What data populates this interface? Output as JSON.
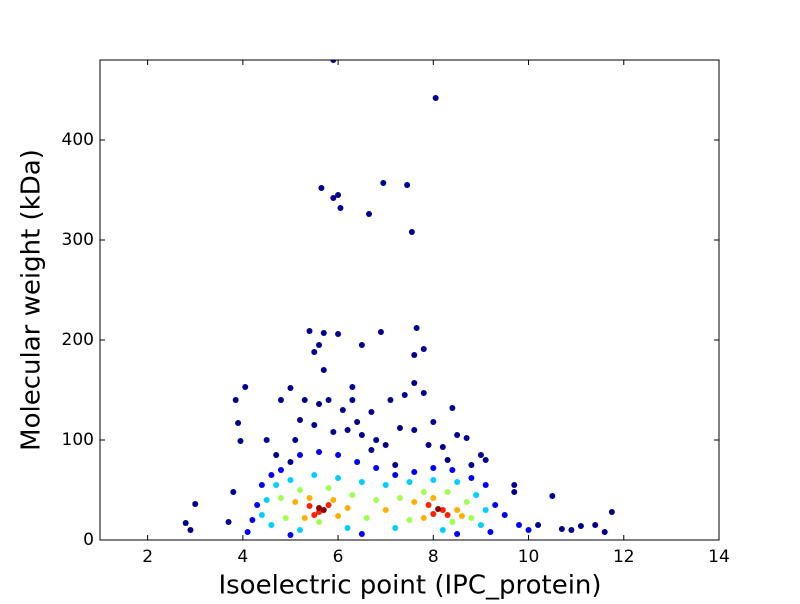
{
  "chart_data": {
    "type": "scatter",
    "x_label": "Isoelectric point (IPC_protein)",
    "y_label": "Molecular weight (kDa)",
    "xlim": [
      1,
      14
    ],
    "xticks": [
      2,
      4,
      6,
      8,
      10,
      12,
      14
    ],
    "ylim": [
      0,
      480
    ],
    "yticks": [
      0,
      100,
      200,
      300,
      400
    ],
    "grid": false,
    "series": [
      {
        "color": "#00008f",
        "x": [
          5.65,
          5.9,
          6.0,
          6.05,
          6.65,
          6.95,
          7.45,
          7.55,
          8.05,
          5.9,
          5.4,
          5.7,
          6.0,
          6.9,
          7.65,
          7.8,
          7.6,
          6.5,
          5.6,
          5.5,
          5.7,
          4.05,
          3.85,
          5.0,
          6.3,
          7.6,
          7.8,
          3.9,
          3.95,
          4.5,
          4.8,
          5.3,
          5.6,
          5.8,
          6.1,
          6.3,
          6.7,
          7.1,
          7.4,
          8.4,
          8.5,
          8.7,
          9.0,
          9.1,
          7.3,
          7.0,
          5.2,
          5.5,
          5.9,
          6.2,
          6.5,
          6.8,
          7.6,
          7.9,
          8.2,
          8.0,
          2.8,
          2.9,
          3.0,
          3.7,
          3.8,
          10.5,
          9.7,
          9.7,
          11.75,
          11.6,
          11.4,
          11.1,
          10.9,
          10.7,
          10.2,
          6.4,
          5.1,
          8.8,
          4.7,
          5.0,
          6.7,
          7.2,
          8.3
        ],
        "values": [
          352,
          342,
          345,
          332,
          326,
          357,
          355,
          308,
          442,
          480,
          209,
          207,
          206,
          208,
          212,
          191,
          185,
          195,
          195,
          188,
          170,
          153,
          140,
          152,
          153,
          157,
          147,
          117,
          99,
          100,
          140,
          140,
          136,
          140,
          130,
          140,
          128,
          140,
          145,
          132,
          105,
          102,
          85,
          80,
          112,
          95,
          120,
          115,
          108,
          110,
          105,
          100,
          110,
          95,
          93,
          118,
          17,
          10,
          36,
          18,
          48,
          44,
          55,
          48,
          28,
          8,
          15,
          14,
          10,
          11,
          15,
          118,
          100,
          75,
          85,
          78,
          90,
          75,
          80
        ]
      },
      {
        "color": "#0000ff",
        "x": [
          4.4,
          4.6,
          4.8,
          5.2,
          5.6,
          6.0,
          6.4,
          6.8,
          7.2,
          7.6,
          8.0,
          8.4,
          8.8,
          9.1,
          9.3,
          9.5,
          9.8,
          10.0,
          4.3,
          4.2,
          4.1,
          5.0,
          6.5,
          8.5,
          9.2
        ],
        "values": [
          55,
          65,
          70,
          85,
          88,
          85,
          78,
          72,
          65,
          68,
          72,
          70,
          62,
          55,
          35,
          25,
          15,
          10,
          35,
          20,
          8,
          5,
          6,
          6,
          8
        ]
      },
      {
        "color": "#00d0ff",
        "x": [
          4.5,
          4.7,
          5.0,
          5.5,
          6.0,
          6.5,
          7.0,
          7.5,
          8.0,
          8.5,
          8.9,
          9.1,
          9.0,
          4.6,
          5.2,
          6.2,
          7.2,
          8.2,
          4.4
        ],
        "values": [
          40,
          55,
          60,
          65,
          62,
          58,
          55,
          58,
          60,
          58,
          45,
          30,
          15,
          15,
          10,
          12,
          12,
          10,
          25
        ]
      },
      {
        "color": "#a0ff50",
        "x": [
          4.8,
          5.2,
          5.8,
          6.3,
          6.8,
          7.3,
          7.8,
          8.3,
          8.7,
          8.8,
          4.9,
          5.6,
          6.6,
          7.5,
          8.4
        ],
        "values": [
          42,
          50,
          52,
          45,
          40,
          42,
          48,
          48,
          38,
          22,
          22,
          18,
          22,
          20,
          18
        ]
      },
      {
        "color": "#ffb000",
        "x": [
          5.1,
          5.4,
          5.9,
          6.2,
          7.6,
          8.0,
          8.5,
          5.3,
          6.0,
          7.8,
          8.6,
          7.0
        ],
        "values": [
          38,
          42,
          40,
          32,
          38,
          42,
          30,
          22,
          24,
          22,
          24,
          30
        ]
      },
      {
        "color": "#ff2000",
        "x": [
          5.4,
          5.6,
          5.8,
          5.5,
          7.9,
          8.2,
          8.3,
          8.0
        ],
        "values": [
          34,
          28,
          35,
          25,
          35,
          30,
          25,
          26
        ]
      },
      {
        "color": "#900000",
        "x": [
          5.6,
          5.7,
          8.1
        ],
        "values": [
          32,
          30,
          31
        ]
      }
    ]
  }
}
